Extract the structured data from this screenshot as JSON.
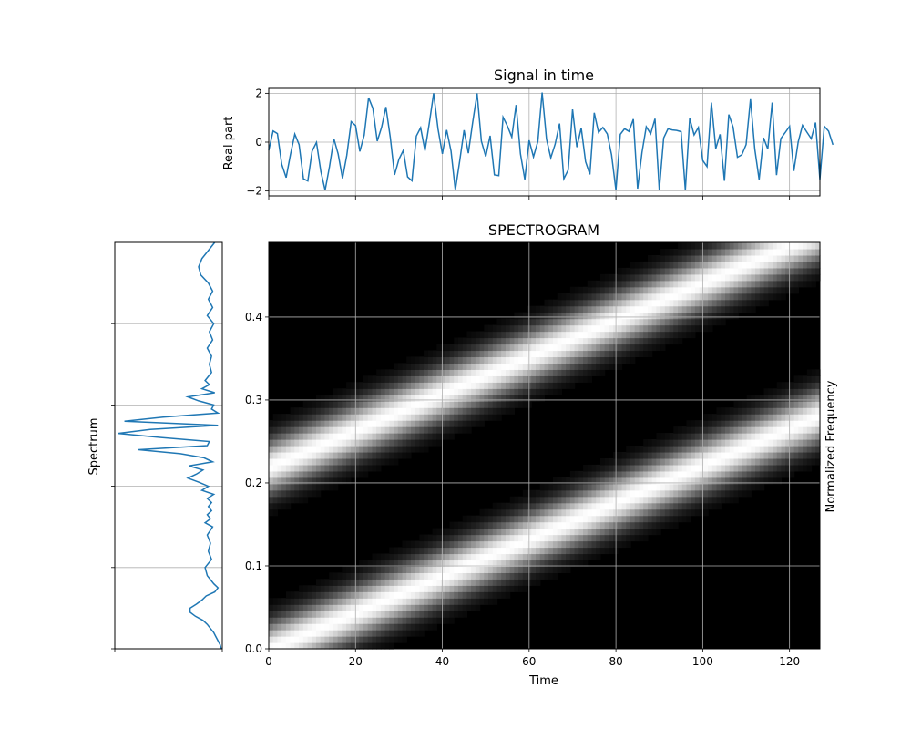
{
  "chart_data": [
    {
      "type": "line",
      "title": "Signal in time",
      "xlabel": "",
      "ylabel": "Real part",
      "xlim": [
        0,
        127
      ],
      "ylim": [
        -2.2,
        2.2
      ],
      "yticks": [
        -2,
        0,
        2
      ],
      "ytick_labels": [
        "−2",
        "0",
        "2"
      ],
      "grid": true,
      "color": "#1f77b4",
      "x_start": 0,
      "x_step": 1,
      "values": [
        -0.34,
        0.46,
        0.35,
        -0.91,
        -1.45,
        -0.51,
        0.33,
        -0.1,
        -1.5,
        -1.59,
        -0.37,
        -0.01,
        -1.2,
        -1.97,
        -1.0,
        0.14,
        -0.49,
        -1.48,
        -0.53,
        0.84,
        0.68,
        -0.38,
        0.29,
        1.82,
        1.38,
        0.04,
        0.61,
        1.44,
        0.2,
        -1.34,
        -0.7,
        -0.34,
        -1.42,
        -1.58,
        0.25,
        0.59,
        -0.35,
        0.79,
        2.0,
        0.54,
        -0.48,
        0.5,
        -0.37,
        -1.96,
        -0.77,
        0.49,
        -0.45,
        0.82,
        1.99,
        0.04,
        -0.59,
        0.26,
        -1.34,
        -1.37,
        1.02,
        0.66,
        0.21,
        1.52,
        -0.48,
        -1.53,
        0.08,
        -0.6,
        0.03,
        2.03,
        0.12,
        -0.64,
        -0.08,
        0.76,
        -1.5,
        -1.14,
        1.34,
        -0.2,
        0.58,
        -0.8,
        -1.32,
        1.2,
        0.4,
        0.6,
        0.34,
        -0.52,
        -1.96,
        0.32,
        0.55,
        0.44,
        0.94,
        -1.9,
        -0.42,
        0.63,
        0.34,
        0.96,
        -1.95,
        0.17,
        0.55,
        0.5,
        0.48,
        0.43,
        -1.96,
        0.97,
        0.3,
        0.6,
        -0.75,
        -1.0,
        1.62,
        -0.26,
        0.32,
        -1.58,
        1.13,
        0.62,
        -0.62,
        -0.52,
        -0.1,
        1.76,
        -0.28,
        -1.53,
        0.18,
        -0.28,
        1.62,
        -1.35,
        0.15,
        0.39,
        0.65,
        -1.18,
        0.01,
        0.69,
        0.41,
        0.14,
        0.8,
        -1.53,
        0.65,
        0.45,
        -0.11
      ],
      "xticks": [
        0,
        20,
        40,
        60,
        80,
        100,
        120
      ]
    },
    {
      "type": "line",
      "title": "",
      "xlabel": "",
      "ylabel": "Spectrum",
      "orientation": "vertical",
      "ylim": [
        0,
        0.5
      ],
      "yticks": [
        0.0,
        0.1,
        0.2,
        0.3,
        0.4
      ],
      "grid": true,
      "color": "#1f77b4",
      "frequency": [
        0.5,
        0.49,
        0.48,
        0.47,
        0.46,
        0.45,
        0.44,
        0.43,
        0.42,
        0.41,
        0.4,
        0.39,
        0.38,
        0.37,
        0.36,
        0.35,
        0.34,
        0.33,
        0.325,
        0.32,
        0.315,
        0.31,
        0.305,
        0.3,
        0.295,
        0.29,
        0.285,
        0.28,
        0.275,
        0.27,
        0.265,
        0.26,
        0.255,
        0.25,
        0.245,
        0.24,
        0.235,
        0.23,
        0.225,
        0.22,
        0.215,
        0.21,
        0.205,
        0.2,
        0.195,
        0.19,
        0.185,
        0.18,
        0.175,
        0.17,
        0.165,
        0.16,
        0.155,
        0.15,
        0.14,
        0.13,
        0.12,
        0.11,
        0.1,
        0.09,
        0.08,
        0.075,
        0.07,
        0.065,
        0.06,
        0.055,
        0.05,
        0.045,
        0.04,
        0.035,
        0.03,
        0.025,
        0.02,
        0.015,
        0.01,
        0.005,
        0.0
      ],
      "magnitude": [
        0.93,
        0.87,
        0.81,
        0.78,
        0.8,
        0.87,
        0.91,
        0.87,
        0.91,
        0.86,
        0.92,
        0.88,
        0.91,
        0.86,
        0.9,
        0.88,
        0.9,
        0.84,
        0.88,
        0.81,
        0.93,
        0.68,
        0.78,
        0.92,
        0.9,
        0.96,
        0.45,
        0.09,
        0.96,
        0.33,
        0.03,
        0.43,
        0.88,
        0.86,
        0.22,
        0.61,
        0.83,
        0.91,
        0.69,
        0.82,
        0.76,
        0.68,
        0.78,
        0.87,
        0.81,
        0.92,
        0.86,
        0.9,
        0.87,
        0.9,
        0.86,
        0.89,
        0.84,
        0.91,
        0.86,
        0.89,
        0.87,
        0.9,
        0.84,
        0.86,
        0.92,
        0.96,
        0.93,
        0.85,
        0.81,
        0.76,
        0.7,
        0.7,
        0.75,
        0.82,
        0.86,
        0.89,
        0.92,
        0.94,
        0.96,
        0.98,
        0.99
      ]
    },
    {
      "type": "heatmap",
      "title": "SPECTROGRAM",
      "xlabel": "Time",
      "ylabel": "Normalized Frequency",
      "xlim": [
        0,
        127
      ],
      "ylim": [
        0,
        0.49
      ],
      "xticks": [
        0,
        20,
        40,
        60,
        80,
        100,
        120
      ],
      "yticks": [
        0.0,
        0.1,
        0.2,
        0.3,
        0.4
      ],
      "grid": true,
      "colormap": "gray",
      "n_time_bins": 128,
      "n_freq_bins": 64,
      "components": [
        {
          "f_start": 0.0,
          "f_end": 0.28
        },
        {
          "f_start": 0.22,
          "f_end": 0.5
        }
      ]
    }
  ]
}
